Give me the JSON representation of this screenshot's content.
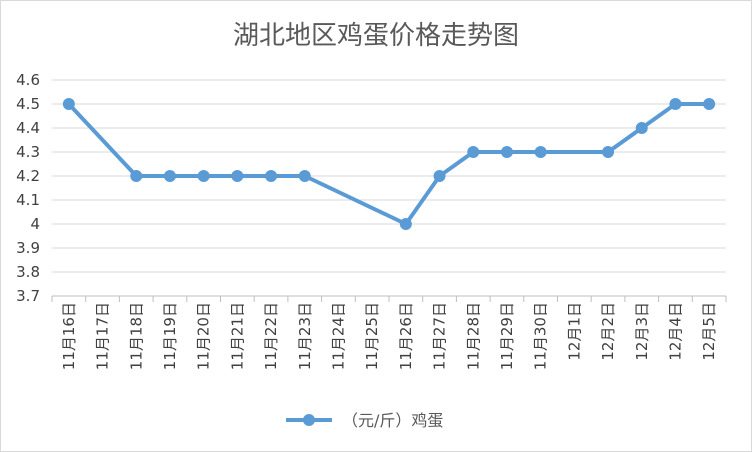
{
  "chart_data": {
    "type": "line",
    "title": "湖北地区鸡蛋价格走势图",
    "xlabel": "",
    "ylabel": "",
    "categories": [
      "11月16日",
      "11月17日",
      "11月18日",
      "11月19日",
      "11月20日",
      "11月21日",
      "11月22日",
      "11月23日",
      "11月24日",
      "11月25日",
      "11月26日",
      "11月27日",
      "11月28日",
      "11月29日",
      "11月30日",
      "12月1日",
      "12月2日",
      "12月3日",
      "12月4日",
      "12月5日"
    ],
    "series": [
      {
        "name": "（元/斤）鸡蛋",
        "values": [
          4.5,
          null,
          4.2,
          4.2,
          4.2,
          4.2,
          4.2,
          4.2,
          null,
          null,
          4.0,
          4.2,
          4.3,
          4.3,
          4.3,
          null,
          4.3,
          4.4,
          4.5,
          4.5
        ],
        "color": "#5b9bd5"
      }
    ],
    "yticks": [
      "3.7",
      "3.8",
      "3.9",
      "4",
      "4.1",
      "4.2",
      "4.3",
      "4.4",
      "4.5",
      "4.6"
    ],
    "ylim": [
      3.7,
      4.6
    ],
    "grid": true,
    "legend": "bottom",
    "connect_gaps": true
  }
}
